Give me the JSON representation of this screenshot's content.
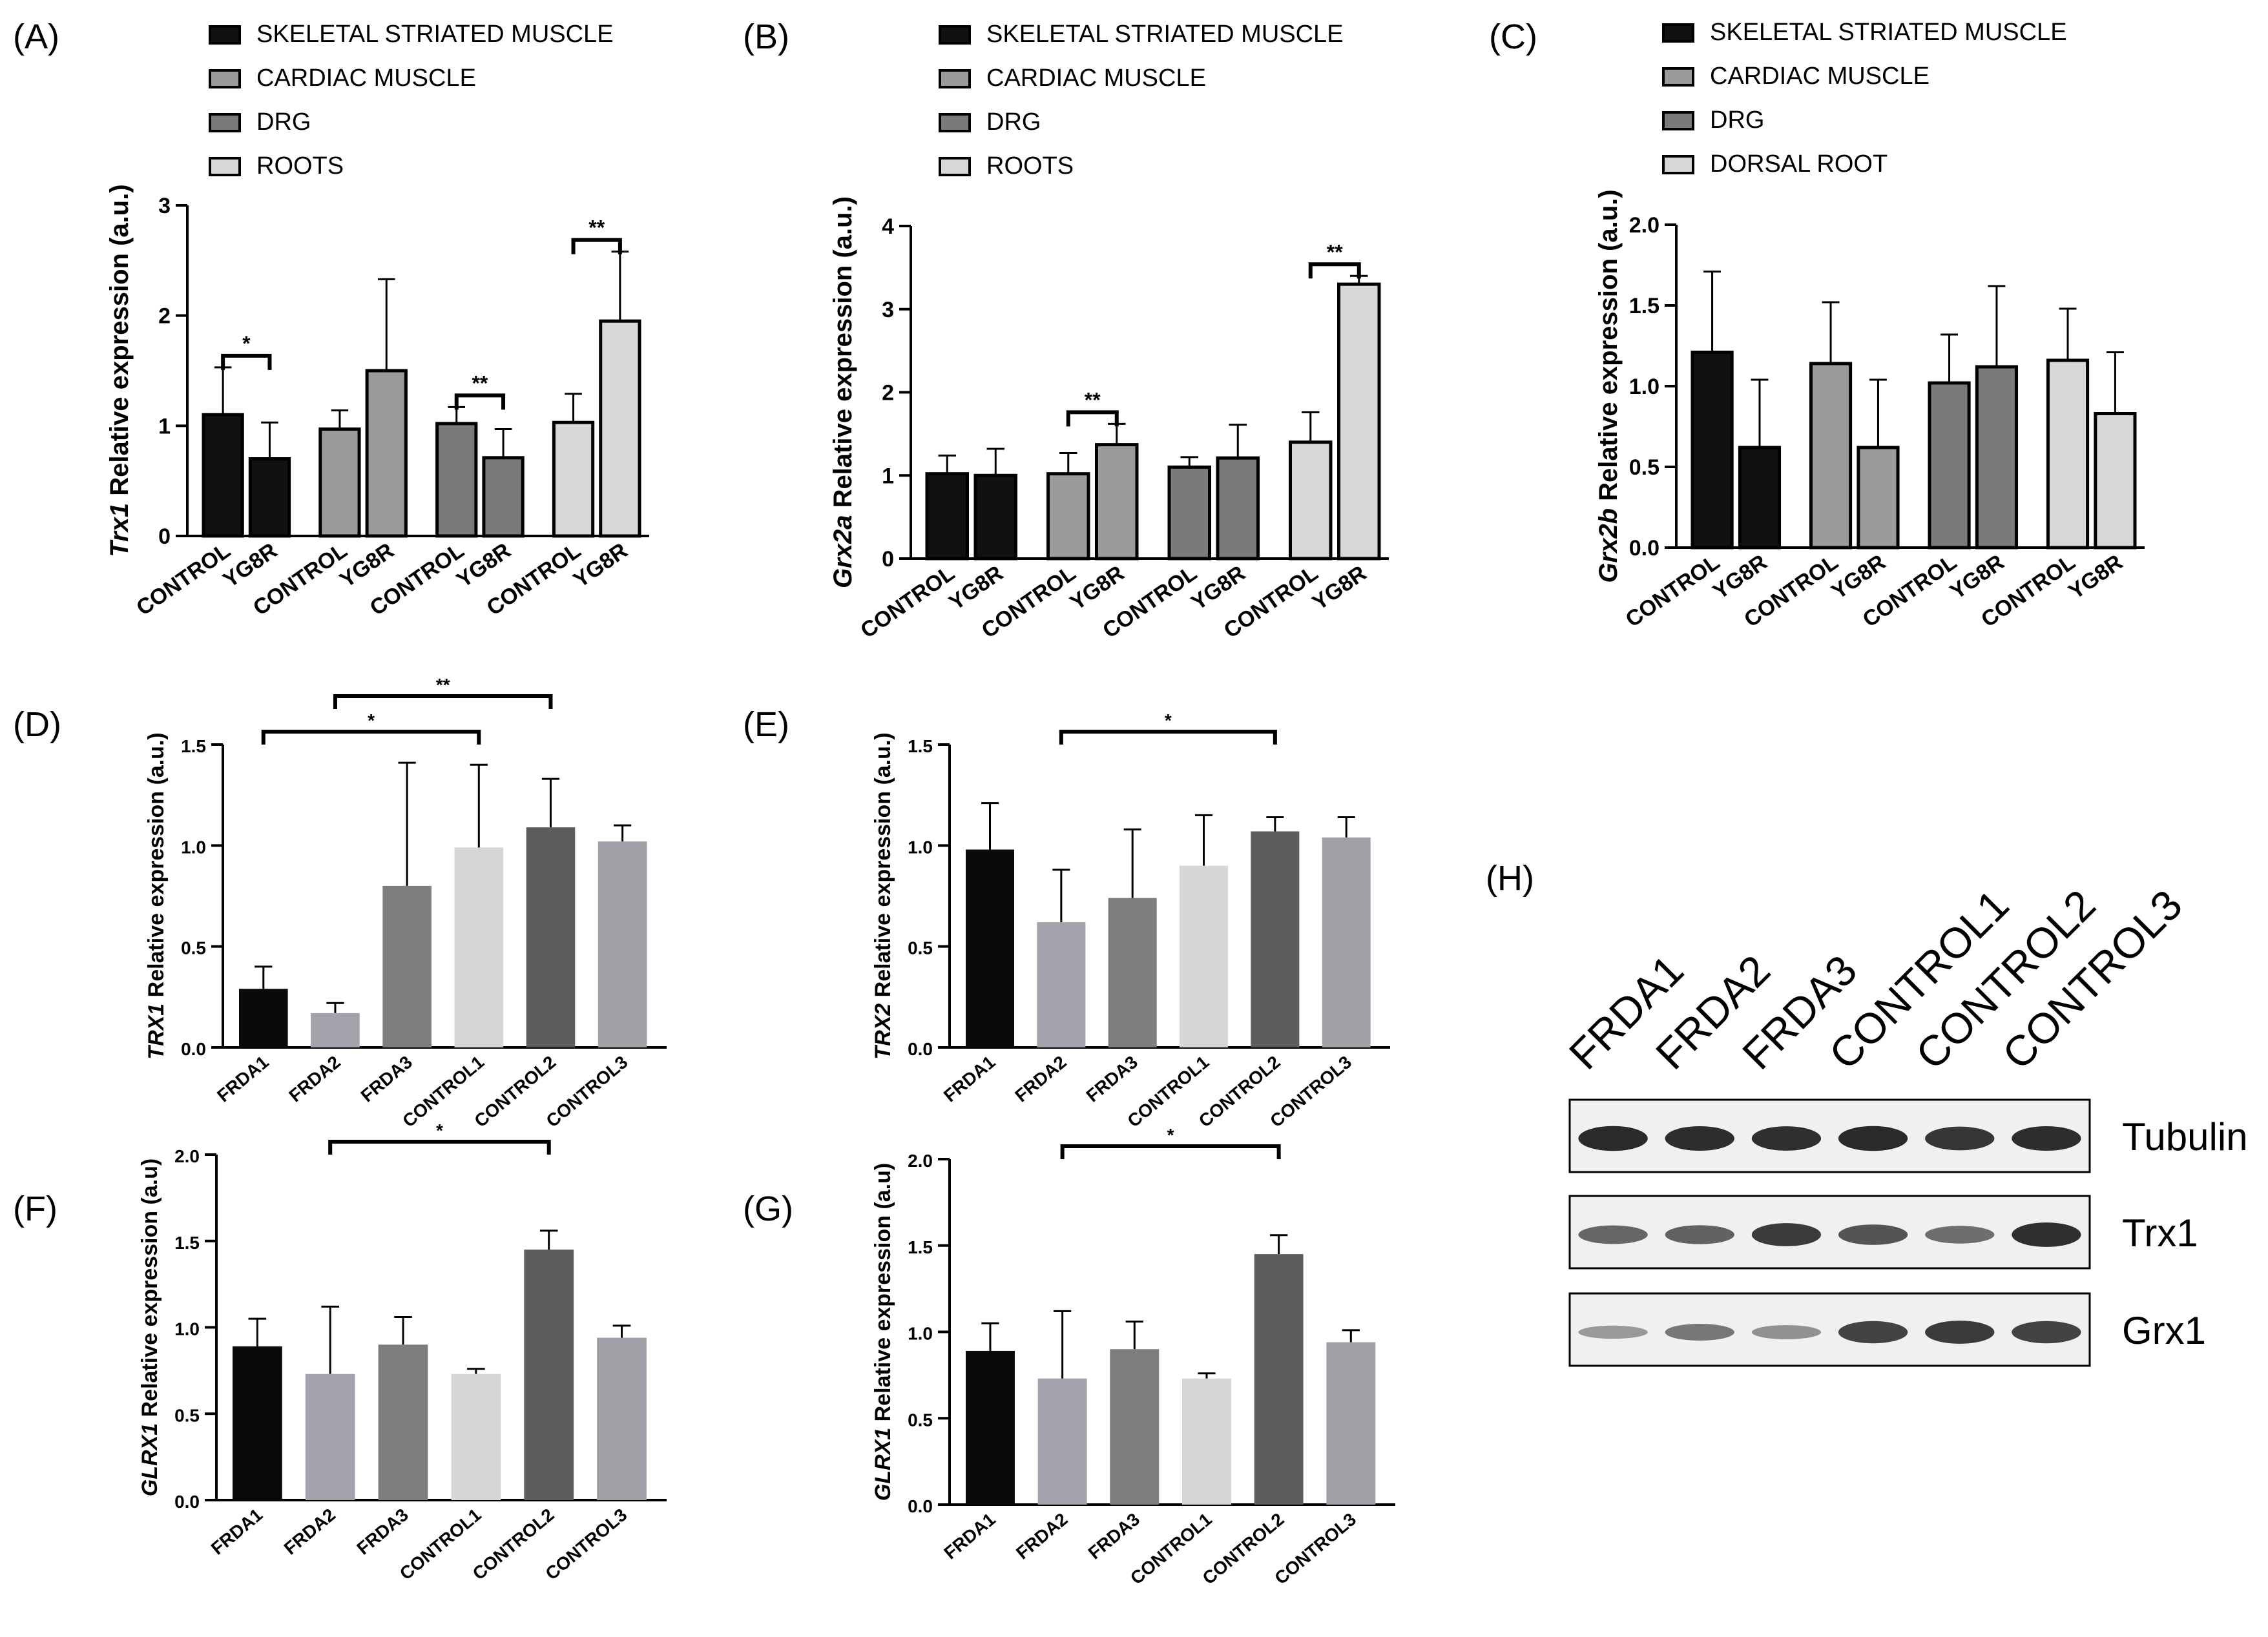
{
  "panels": [
    {
      "id": "A",
      "letter": "(A)",
      "type": "grouped-bar",
      "ylabel_italic": "Trx1",
      "ylabel_rest": " Relative expression (a.u.)",
      "ylim": [
        0,
        3
      ],
      "yticks": [
        0,
        1,
        2,
        3
      ],
      "tick_labels": [
        "0",
        "1",
        "2",
        "3"
      ],
      "legend": [
        "SKELETAL STRIATED MUSCLE",
        "CARDIAC MUSCLE",
        "DRG",
        "ROOTS"
      ],
      "categories": [
        "CONTROL",
        "YG8R",
        "CONTROL",
        "YG8R",
        "CONTROL",
        "YG8R",
        "CONTROL",
        "YG8R"
      ],
      "values": [
        1.1,
        0.7,
        0.97,
        1.5,
        1.02,
        0.71,
        1.03,
        1.95
      ],
      "errors": [
        0.43,
        0.33,
        0.17,
        0.83,
        0.15,
        0.26,
        0.26,
        0.63
      ],
      "sig": [
        {
          "a": 0,
          "b": 1,
          "label": "*"
        },
        {
          "a": 4,
          "b": 5,
          "label": "**"
        },
        {
          "a": 6,
          "b": 7,
          "label": "**"
        }
      ]
    },
    {
      "id": "B",
      "letter": "(B)",
      "type": "grouped-bar",
      "ylabel_italic": "Grx2a",
      "ylabel_rest": " Relative expression (a.u.)",
      "ylim": [
        0,
        4
      ],
      "yticks": [
        0,
        1,
        2,
        3,
        4
      ],
      "tick_labels": [
        "0",
        "1",
        "2",
        "3",
        "4"
      ],
      "legend": [
        "SKELETAL STRIATED MUSCLE",
        "CARDIAC MUSCLE",
        "DRG",
        "ROOTS"
      ],
      "categories": [
        "CONTROL",
        "YG8R",
        "CONTROL",
        "YG8R",
        "CONTROL",
        "YG8R",
        "CONTROL",
        "YG8R"
      ],
      "values": [
        1.02,
        1.0,
        1.02,
        1.37,
        1.1,
        1.21,
        1.4,
        3.3
      ],
      "errors": [
        0.22,
        0.32,
        0.25,
        0.25,
        0.12,
        0.4,
        0.36,
        0.1
      ],
      "sig": [
        {
          "a": 2,
          "b": 3,
          "label": "**"
        },
        {
          "a": 6,
          "b": 7,
          "label": "**"
        }
      ]
    },
    {
      "id": "C",
      "letter": "(C)",
      "type": "grouped-bar",
      "ylabel_italic": "Grx2b",
      "ylabel_rest": " Relative expression (a.u.)",
      "ylim": [
        0,
        2
      ],
      "yticks": [
        0,
        0.5,
        1,
        1.5,
        2
      ],
      "tick_labels": [
        "0.0",
        "0.5",
        "1.0",
        "1.5",
        "2.0"
      ],
      "legend": [
        "SKELETAL STRIATED MUSCLE",
        "CARDIAC MUSCLE",
        "DRG",
        "DORSAL ROOT"
      ],
      "categories": [
        "CONTROL",
        "YG8R",
        "CONTROL",
        "YG8R",
        "CONTROL",
        "YG8R",
        "CONTROL",
        "YG8R"
      ],
      "values": [
        1.21,
        0.62,
        1.14,
        0.62,
        1.02,
        1.12,
        1.16,
        0.83
      ],
      "errors": [
        0.5,
        0.42,
        0.38,
        0.42,
        0.3,
        0.5,
        0.32,
        0.38
      ],
      "sig": []
    },
    {
      "id": "D",
      "letter": "(D)",
      "type": "cell-bar",
      "ylabel_italic": "TRX1",
      "ylabel_rest": " Relative expression (a.u.)",
      "ylim": [
        0,
        1.5
      ],
      "yticks": [
        0,
        0.5,
        1,
        1.5
      ],
      "tick_labels": [
        "0.0",
        "0.5",
        "1.0",
        "1.5"
      ],
      "categories": [
        "FRDA1",
        "FRDA2",
        "FRDA3",
        "CONTROL1",
        "CONTROL2",
        "CONTROL3"
      ],
      "values": [
        0.29,
        0.17,
        0.8,
        0.99,
        1.09,
        1.02
      ],
      "errors": [
        0.11,
        0.05,
        0.61,
        0.41,
        0.24,
        0.08
      ],
      "sig": [
        {
          "a": 0,
          "b": 3,
          "label": "*"
        },
        {
          "a": 1,
          "b": 4,
          "label": "**"
        }
      ]
    },
    {
      "id": "E",
      "letter": "(E)",
      "type": "cell-bar",
      "ylabel_italic": "TRX2",
      "ylabel_rest": " Relative expression (a.u.)",
      "ylim": [
        0,
        1.5
      ],
      "yticks": [
        0,
        0.5,
        1,
        1.5
      ],
      "tick_labels": [
        "0.0",
        "0.5",
        "1.0",
        "1.5"
      ],
      "categories": [
        "FRDA1",
        "FRDA2",
        "FRDA3",
        "CONTROL1",
        "CONTROL2",
        "CONTROL3"
      ],
      "values": [
        0.98,
        0.62,
        0.74,
        0.9,
        1.07,
        1.04
      ],
      "errors": [
        0.23,
        0.26,
        0.34,
        0.25,
        0.07,
        0.1
      ],
      "sig": [
        {
          "a": 1,
          "b": 4,
          "label": "*"
        }
      ]
    },
    {
      "id": "F",
      "letter": "(F)",
      "type": "cell-bar",
      "ylabel_italic": "GLRX1",
      "ylabel_rest": " Relative expression (a.u)",
      "ylim": [
        0,
        2
      ],
      "yticks": [
        0,
        0.5,
        1,
        1.5,
        2
      ],
      "tick_labels": [
        "0.0",
        "0.5",
        "1.0",
        "1.5",
        "2.0"
      ],
      "categories": [
        "FRDA1",
        "FRDA2",
        "FRDA3",
        "CONTROL1",
        "CONTROL2",
        "CONTROL3"
      ],
      "values": [
        0.89,
        0.73,
        0.9,
        0.73,
        1.45,
        0.94
      ],
      "errors": [
        0.16,
        0.39,
        0.16,
        0.03,
        0.11,
        0.07
      ],
      "sig": [
        {
          "a": 1,
          "b": 4,
          "label": "*"
        }
      ]
    },
    {
      "id": "G",
      "letter": "(G)",
      "type": "cell-bar",
      "ylabel_italic": "GLRX1",
      "ylabel_rest": " Relative expression (a.u)",
      "ylim": [
        0,
        2
      ],
      "yticks": [
        0,
        0.5,
        1,
        1.5,
        2
      ],
      "tick_labels": [
        "0.0",
        "0.5",
        "1.0",
        "1.5",
        "2.0"
      ],
      "categories": [
        "FRDA1",
        "FRDA2",
        "FRDA3",
        "CONTROL1",
        "CONTROL2",
        "CONTROL3"
      ],
      "values": [
        0.89,
        0.73,
        0.9,
        0.73,
        1.45,
        0.94
      ],
      "errors": [
        0.16,
        0.39,
        0.16,
        0.03,
        0.11,
        0.07
      ],
      "sig": [
        {
          "a": 1,
          "b": 4,
          "label": "*"
        }
      ]
    }
  ],
  "blot": {
    "letter": "(H)",
    "lanes": [
      "FRDA1",
      "FRDA2",
      "FRDA3",
      "CONTROL1",
      "CONTROL2",
      "CONTROL3"
    ],
    "rows": [
      {
        "label": "Tubulin",
        "intensity": [
          0.95,
          0.93,
          0.92,
          0.95,
          0.88,
          0.93
        ]
      },
      {
        "label": "Trx1",
        "intensity": [
          0.6,
          0.62,
          0.85,
          0.7,
          0.55,
          0.92
        ]
      },
      {
        "label": "Grx1",
        "intensity": [
          0.3,
          0.5,
          0.35,
          0.8,
          0.85,
          0.8
        ]
      }
    ]
  },
  "colors": {
    "black": "#111111",
    "cardiac": "#9b9b9b",
    "drg": "#7a7a7a",
    "roots": "#d7d7d7",
    "frda1": "#0a0a0a",
    "frda2": "#a3a3ab",
    "frda3": "#7d7d7d",
    "control1": "#d6d6d6",
    "control2": "#5d5d5d",
    "control3": "#a0a0a7",
    "axis": "#000000",
    "blot_bg": "#f0f0f0"
  }
}
